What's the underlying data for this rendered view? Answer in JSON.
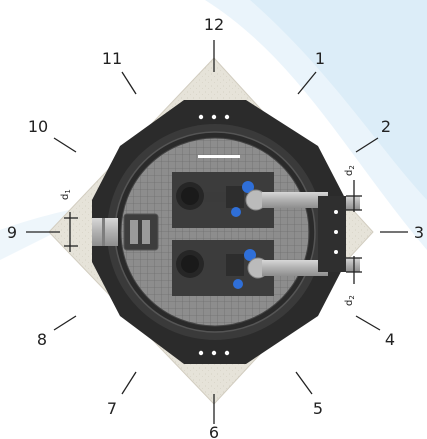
{
  "diagram": {
    "labels": [
      "12",
      "1",
      "2",
      "3",
      "4",
      "5",
      "6",
      "7",
      "8",
      "9",
      "10",
      "11"
    ],
    "dimension_labels": {
      "d1": {
        "base": "d",
        "sub": "1"
      },
      "d2_top": {
        "base": "d",
        "sub": "2"
      },
      "d2_bottom": {
        "base": "d",
        "sub": "2"
      }
    },
    "colors": {
      "background_swoosh": "#e3f1fa",
      "base_plate": "#e4e1d7",
      "frame": "#2b2b2b",
      "chamber_floor": "#8a8a8a",
      "pipe": "#b8b8b8",
      "valve_blue": "#2f6fd8"
    }
  }
}
